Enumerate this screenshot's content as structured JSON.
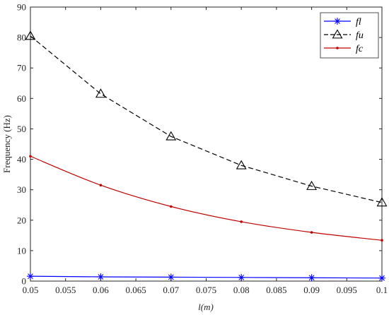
{
  "chart_data": {
    "type": "line",
    "x": [
      0.05,
      0.06,
      0.07,
      0.08,
      0.09,
      0.1
    ],
    "xlabel": "l(m)",
    "ylabel": "Frequency (Hz)",
    "xlim": [
      0.05,
      0.1
    ],
    "ylim": [
      0,
      90
    ],
    "xticks": [
      "0.05",
      "0.055",
      "0.06",
      "0.065",
      "0.07",
      "0.075",
      "0.08",
      "0.085",
      "0.09",
      "0.095",
      "0.1"
    ],
    "yticks": [
      "0",
      "10",
      "20",
      "30",
      "40",
      "50",
      "60",
      "70",
      "80",
      "90"
    ],
    "grid": false,
    "legend_position": "top-right",
    "series": [
      {
        "name": "fl",
        "values": [
          1.6,
          1.4,
          1.3,
          1.2,
          1.1,
          1.0
        ],
        "color": "#0000ff",
        "marker": "asterisk",
        "line": "solid"
      },
      {
        "name": "fu",
        "values": [
          80.5,
          61.5,
          47.5,
          38.0,
          31.2,
          25.8
        ],
        "color": "#000000",
        "marker": "triangle",
        "line": "dashed"
      },
      {
        "name": "fc",
        "values": [
          41.0,
          31.5,
          24.5,
          19.5,
          16.0,
          13.4
        ],
        "color": "#c00000",
        "marker": "dot",
        "line": "solid"
      }
    ]
  }
}
